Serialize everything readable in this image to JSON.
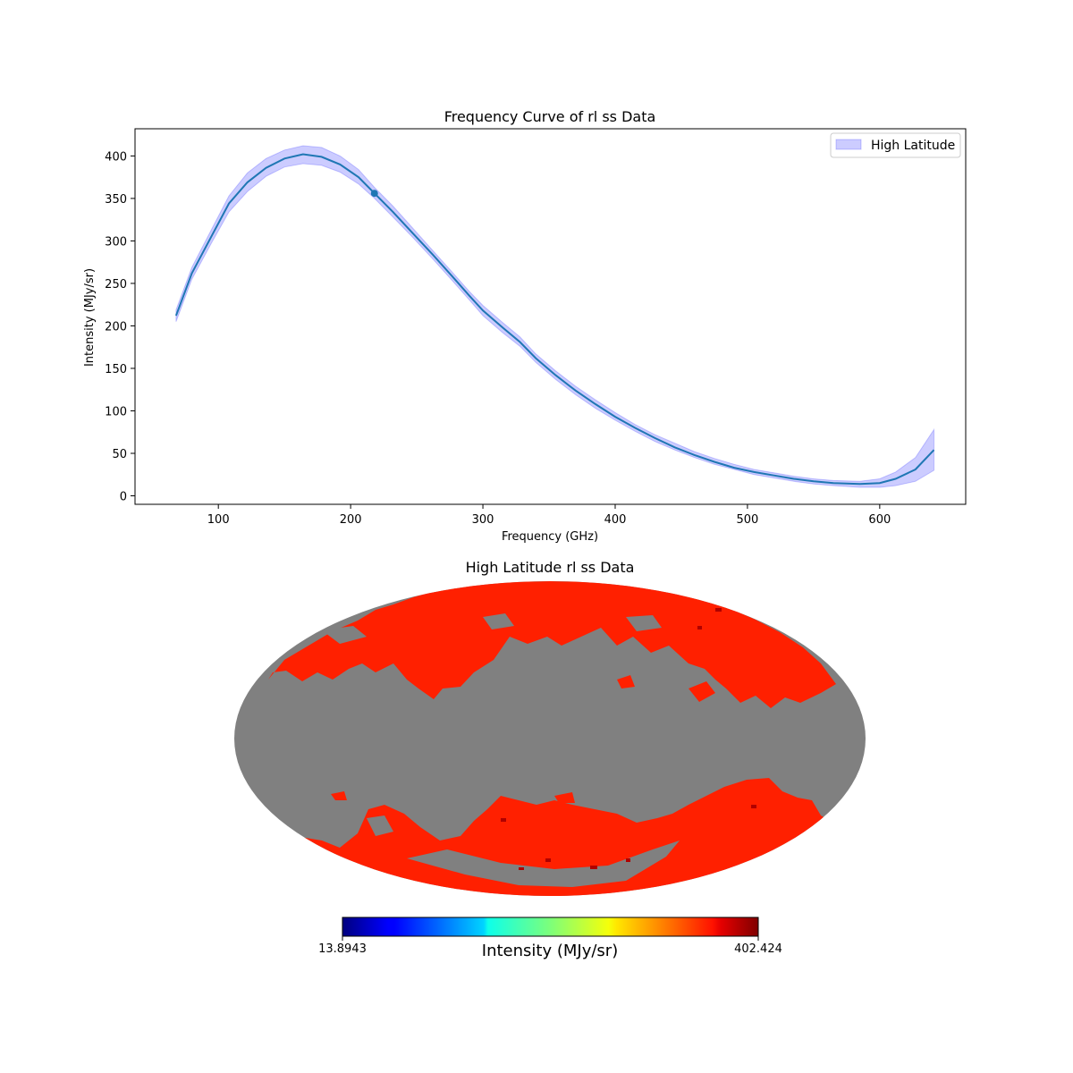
{
  "chart_data": [
    {
      "type": "line",
      "title": "Frequency Curve of rl ss Data",
      "xlabel": "Frequency (GHz)",
      "ylabel": "Intensity (MJy/sr)",
      "xlim": [
        37,
        665
      ],
      "ylim": [
        -10,
        432
      ],
      "xticks": [
        100,
        200,
        300,
        400,
        500,
        600
      ],
      "yticks": [
        0,
        50,
        100,
        150,
        200,
        250,
        300,
        350,
        400
      ],
      "legend": {
        "position": "upper-right",
        "label": "High Latitude"
      },
      "series": [
        {
          "name": "High Latitude",
          "x": [
            68,
            80,
            95,
            108,
            122,
            136,
            150,
            164,
            178,
            192,
            206,
            218,
            232,
            247,
            262,
            277,
            290,
            300,
            315,
            328,
            340,
            355,
            370,
            385,
            400,
            415,
            430,
            445,
            460,
            475,
            490,
            505,
            520,
            535,
            550,
            565,
            585,
            600,
            612,
            627,
            641
          ],
          "values": [
            212,
            262,
            306,
            344,
            369,
            386,
            397,
            402,
            399,
            390,
            375,
            356,
            334,
            309,
            284,
            258,
            235,
            218,
            198,
            181,
            162,
            142,
            124,
            108,
            93,
            80,
            68,
            57,
            48,
            40,
            33,
            28,
            24,
            20,
            17,
            15,
            14,
            15,
            20,
            31,
            54
          ],
          "lower": [
            205,
            255,
            298,
            334,
            358,
            376,
            387,
            391,
            389,
            381,
            367,
            350,
            328,
            304,
            279,
            253,
            230,
            212,
            192,
            176,
            157,
            137,
            119,
            103,
            89,
            76,
            64,
            54,
            45,
            37,
            31,
            25,
            21,
            17,
            14,
            12,
            10,
            10,
            12,
            17,
            30
          ],
          "upper": [
            219,
            269,
            314,
            353,
            380,
            397,
            407,
            412,
            410,
            400,
            384,
            363,
            341,
            315,
            289,
            263,
            240,
            224,
            204,
            187,
            167,
            147,
            129,
            113,
            98,
            84,
            72,
            62,
            52,
            44,
            37,
            31,
            27,
            23,
            20,
            18,
            17,
            20,
            28,
            45,
            78
          ]
        }
      ],
      "marker": {
        "x": 218,
        "y": 356
      },
      "colors": {
        "line": "#1f77b4",
        "band": "#0000ff",
        "marker": "#1f77b4"
      }
    },
    {
      "type": "heatmap",
      "title": "High Latitude rl ss Data",
      "projection": "mollweide",
      "colorbar": {
        "label": "Intensity (MJy/sr)",
        "min": "13.8943",
        "max": "402.424"
      },
      "colors": {
        "masked": "#808080",
        "high": "#ff2000",
        "peak": "#b00000"
      }
    }
  ]
}
